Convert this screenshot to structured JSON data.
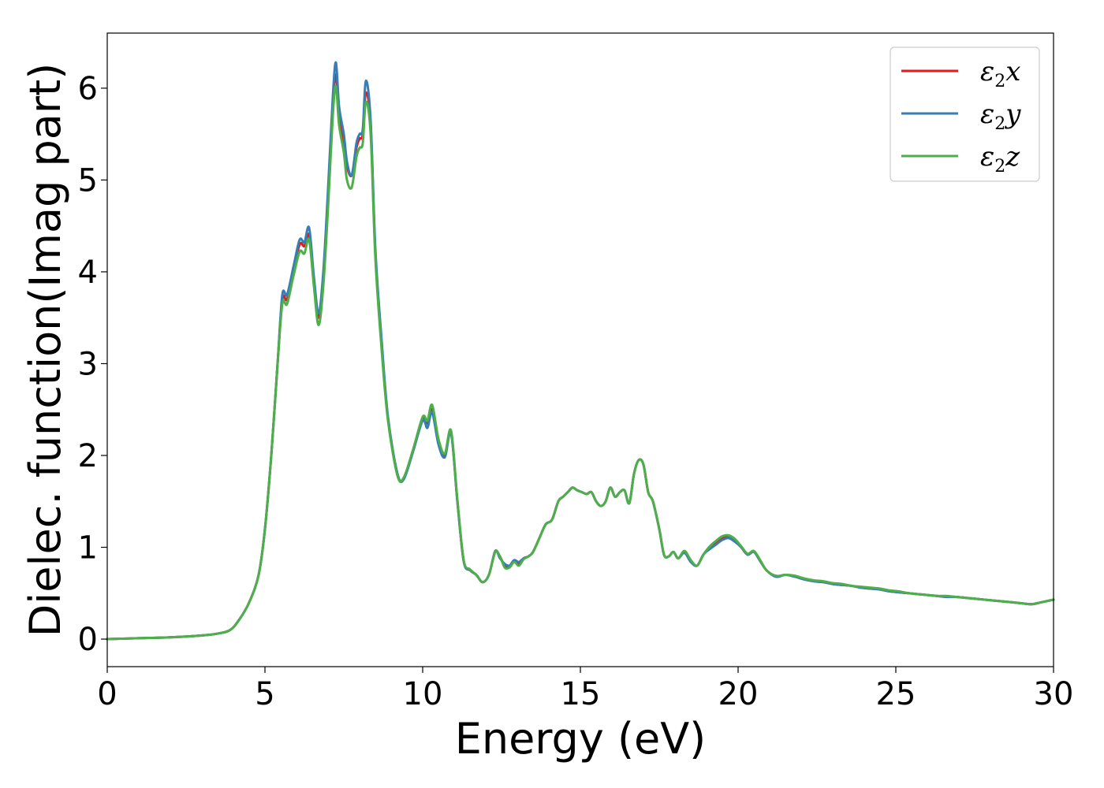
{
  "chart_data": {
    "type": "line",
    "xlabel": "Energy (eV)",
    "ylabel": "Dielec. function(Imag part)",
    "xlim": [
      0,
      30
    ],
    "ylim": [
      -0.3,
      6.6
    ],
    "xticks": [
      "0",
      "5",
      "10",
      "15",
      "20",
      "25",
      "30"
    ],
    "yticks": [
      "0",
      "1",
      "2",
      "3",
      "4",
      "5",
      "6"
    ],
    "grid": false,
    "legend_position": "top-right",
    "series": [
      {
        "name": "ε2x",
        "legend_base": "ε",
        "legend_sub": "2",
        "legend_var": "x",
        "color": "#e41a1c",
        "x": [
          0,
          1,
          2,
          3,
          3.5,
          3.9,
          4.2,
          4.5,
          4.8,
          5.0,
          5.2,
          5.4,
          5.55,
          5.7,
          5.9,
          6.1,
          6.25,
          6.4,
          6.55,
          6.7,
          6.85,
          7.0,
          7.15,
          7.25,
          7.35,
          7.5,
          7.6,
          7.75,
          7.9,
          8.0,
          8.1,
          8.2,
          8.35,
          8.5,
          8.7,
          8.9,
          9.2,
          9.4,
          9.7,
          10.0,
          10.15,
          10.3,
          10.5,
          10.7,
          10.9,
          11.1,
          11.3,
          11.5,
          11.7,
          11.9,
          12.1,
          12.3,
          12.45,
          12.6,
          12.75,
          12.9,
          13.05,
          13.2,
          13.35,
          13.5,
          13.7,
          13.9,
          14.1,
          14.3,
          14.45,
          14.6,
          14.75,
          14.9,
          15.05,
          15.2,
          15.35,
          15.5,
          15.65,
          15.8,
          15.95,
          16.1,
          16.25,
          16.4,
          16.55,
          16.7,
          16.85,
          17.0,
          17.15,
          17.3,
          17.5,
          17.65,
          17.8,
          17.95,
          18.1,
          18.3,
          18.5,
          18.7,
          18.9,
          19.1,
          19.3,
          19.5,
          19.7,
          19.9,
          20.1,
          20.3,
          20.5,
          20.7,
          20.9,
          21.2,
          21.5,
          21.8,
          22.1,
          22.4,
          22.7,
          23.0,
          23.3,
          23.6,
          23.9,
          24.2,
          24.5,
          24.8,
          25.1,
          25.4,
          25.7,
          26.0,
          26.3,
          26.6,
          26.9,
          27.2,
          27.5,
          27.8,
          28.1,
          28.4,
          28.7,
          29.0,
          29.3,
          29.6,
          30.0
        ],
        "y": [
          0.0,
          0.01,
          0.02,
          0.04,
          0.06,
          0.1,
          0.22,
          0.4,
          0.7,
          1.2,
          2.0,
          3.0,
          3.7,
          3.7,
          4.0,
          4.3,
          4.28,
          4.4,
          3.9,
          3.5,
          3.9,
          4.8,
          5.8,
          6.15,
          5.7,
          5.4,
          5.15,
          5.05,
          5.35,
          5.45,
          5.5,
          5.95,
          5.6,
          4.2,
          3.2,
          2.4,
          1.8,
          1.75,
          2.05,
          2.4,
          2.35,
          2.5,
          2.15,
          2.0,
          2.25,
          1.5,
          0.85,
          0.75,
          0.7,
          0.62,
          0.7,
          0.95,
          0.9,
          0.8,
          0.78,
          0.85,
          0.82,
          0.88,
          0.9,
          0.95,
          1.1,
          1.25,
          1.3,
          1.5,
          1.55,
          1.6,
          1.65,
          1.62,
          1.6,
          1.58,
          1.6,
          1.5,
          1.45,
          1.5,
          1.65,
          1.55,
          1.6,
          1.62,
          1.48,
          1.8,
          1.95,
          1.9,
          1.6,
          1.5,
          1.2,
          0.92,
          0.9,
          0.95,
          0.88,
          0.95,
          0.85,
          0.8,
          0.92,
          1.0,
          1.05,
          1.1,
          1.12,
          1.08,
          1.0,
          0.92,
          0.95,
          0.85,
          0.75,
          0.68,
          0.7,
          0.68,
          0.65,
          0.63,
          0.62,
          0.6,
          0.59,
          0.58,
          0.56,
          0.55,
          0.54,
          0.52,
          0.51,
          0.5,
          0.49,
          0.48,
          0.47,
          0.46,
          0.46,
          0.45,
          0.44,
          0.43,
          0.42,
          0.41,
          0.4,
          0.39,
          0.38,
          0.4,
          0.43
        ]
      },
      {
        "name": "ε2y",
        "legend_base": "ε",
        "legend_sub": "2",
        "legend_var": "y",
        "color": "#377eb8",
        "x": [
          0,
          1,
          2,
          3,
          3.5,
          3.9,
          4.2,
          4.5,
          4.8,
          5.0,
          5.2,
          5.4,
          5.55,
          5.7,
          5.9,
          6.1,
          6.25,
          6.4,
          6.55,
          6.7,
          6.85,
          7.0,
          7.15,
          7.25,
          7.35,
          7.5,
          7.6,
          7.75,
          7.9,
          8.0,
          8.1,
          8.2,
          8.35,
          8.5,
          8.7,
          8.9,
          9.2,
          9.4,
          9.7,
          10.0,
          10.15,
          10.3,
          10.5,
          10.7,
          10.9,
          11.1,
          11.3,
          11.5,
          11.7,
          11.9,
          12.1,
          12.3,
          12.45,
          12.6,
          12.75,
          12.9,
          13.05,
          13.2,
          13.35,
          13.5,
          13.7,
          13.9,
          14.1,
          14.3,
          14.45,
          14.6,
          14.75,
          14.9,
          15.05,
          15.2,
          15.35,
          15.5,
          15.65,
          15.8,
          15.95,
          16.1,
          16.25,
          16.4,
          16.55,
          16.7,
          16.85,
          17.0,
          17.15,
          17.3,
          17.5,
          17.65,
          17.8,
          17.95,
          18.1,
          18.3,
          18.5,
          18.7,
          18.9,
          19.1,
          19.3,
          19.5,
          19.7,
          19.9,
          20.1,
          20.3,
          20.5,
          20.7,
          20.9,
          21.2,
          21.5,
          21.8,
          22.1,
          22.4,
          22.7,
          23.0,
          23.3,
          23.6,
          23.9,
          24.2,
          24.5,
          24.8,
          25.1,
          25.4,
          25.7,
          26.0,
          26.3,
          26.6,
          26.9,
          27.2,
          27.5,
          27.8,
          28.1,
          28.4,
          28.7,
          29.0,
          29.3,
          29.6,
          30.0
        ],
        "y": [
          0.0,
          0.01,
          0.02,
          0.04,
          0.06,
          0.1,
          0.22,
          0.4,
          0.7,
          1.2,
          2.0,
          3.0,
          3.75,
          3.75,
          4.05,
          4.35,
          4.32,
          4.48,
          3.95,
          3.55,
          4.0,
          4.9,
          5.9,
          6.28,
          5.8,
          5.5,
          5.2,
          5.05,
          5.4,
          5.5,
          5.55,
          6.08,
          5.65,
          4.25,
          3.25,
          2.42,
          1.8,
          1.74,
          2.05,
          2.38,
          2.3,
          2.47,
          2.12,
          1.98,
          2.24,
          1.5,
          0.85,
          0.75,
          0.7,
          0.62,
          0.7,
          0.96,
          0.88,
          0.82,
          0.8,
          0.86,
          0.84,
          0.88,
          0.9,
          0.95,
          1.1,
          1.25,
          1.3,
          1.5,
          1.55,
          1.6,
          1.65,
          1.62,
          1.6,
          1.58,
          1.6,
          1.5,
          1.45,
          1.5,
          1.65,
          1.55,
          1.6,
          1.62,
          1.48,
          1.8,
          1.95,
          1.9,
          1.6,
          1.5,
          1.2,
          0.92,
          0.9,
          0.95,
          0.88,
          0.94,
          0.84,
          0.8,
          0.92,
          0.98,
          1.03,
          1.08,
          1.1,
          1.06,
          1.0,
          0.92,
          0.95,
          0.85,
          0.75,
          0.68,
          0.7,
          0.68,
          0.65,
          0.63,
          0.62,
          0.6,
          0.59,
          0.58,
          0.56,
          0.55,
          0.54,
          0.52,
          0.51,
          0.5,
          0.49,
          0.48,
          0.47,
          0.46,
          0.46,
          0.45,
          0.44,
          0.43,
          0.42,
          0.41,
          0.4,
          0.39,
          0.38,
          0.4,
          0.43
        ]
      },
      {
        "name": "ε2z",
        "legend_base": "ε",
        "legend_sub": "2",
        "legend_var": "z",
        "color": "#4daf4a",
        "x": [
          0,
          1,
          2,
          3,
          3.5,
          3.9,
          4.2,
          4.5,
          4.8,
          5.0,
          5.2,
          5.4,
          5.55,
          5.7,
          5.9,
          6.1,
          6.25,
          6.4,
          6.55,
          6.7,
          6.85,
          7.0,
          7.15,
          7.25,
          7.35,
          7.5,
          7.6,
          7.75,
          7.9,
          8.0,
          8.1,
          8.2,
          8.35,
          8.5,
          8.7,
          8.9,
          9.2,
          9.4,
          9.7,
          10.0,
          10.15,
          10.3,
          10.5,
          10.7,
          10.9,
          11.1,
          11.3,
          11.5,
          11.7,
          11.9,
          12.1,
          12.3,
          12.45,
          12.6,
          12.75,
          12.9,
          13.05,
          13.2,
          13.35,
          13.5,
          13.7,
          13.9,
          14.1,
          14.3,
          14.45,
          14.6,
          14.75,
          14.9,
          15.05,
          15.2,
          15.35,
          15.5,
          15.65,
          15.8,
          15.95,
          16.1,
          16.25,
          16.4,
          16.55,
          16.7,
          16.85,
          17.0,
          17.15,
          17.3,
          17.5,
          17.65,
          17.8,
          17.95,
          18.1,
          18.3,
          18.5,
          18.7,
          18.9,
          19.1,
          19.3,
          19.5,
          19.7,
          19.9,
          20.1,
          20.3,
          20.5,
          20.7,
          20.9,
          21.2,
          21.5,
          21.8,
          22.1,
          22.4,
          22.7,
          23.0,
          23.3,
          23.6,
          23.9,
          24.2,
          24.5,
          24.8,
          25.1,
          25.4,
          25.7,
          26.0,
          26.3,
          26.6,
          26.9,
          27.2,
          27.5,
          27.8,
          28.1,
          28.4,
          28.7,
          29.0,
          29.3,
          29.6,
          30.0
        ],
        "y": [
          0.0,
          0.01,
          0.02,
          0.04,
          0.06,
          0.1,
          0.22,
          0.4,
          0.7,
          1.2,
          2.0,
          3.0,
          3.65,
          3.65,
          3.95,
          4.22,
          4.2,
          4.35,
          3.85,
          3.42,
          3.85,
          4.7,
          5.7,
          6.02,
          5.6,
          5.3,
          5.0,
          4.92,
          5.25,
          5.35,
          5.4,
          5.85,
          5.5,
          4.15,
          3.15,
          2.38,
          1.78,
          1.76,
          2.07,
          2.42,
          2.38,
          2.55,
          2.18,
          2.02,
          2.27,
          1.52,
          0.86,
          0.76,
          0.7,
          0.62,
          0.7,
          0.95,
          0.9,
          0.78,
          0.78,
          0.84,
          0.8,
          0.87,
          0.9,
          0.95,
          1.1,
          1.25,
          1.3,
          1.5,
          1.55,
          1.6,
          1.65,
          1.62,
          1.6,
          1.58,
          1.6,
          1.5,
          1.45,
          1.5,
          1.65,
          1.55,
          1.6,
          1.62,
          1.48,
          1.8,
          1.95,
          1.9,
          1.6,
          1.5,
          1.2,
          0.92,
          0.9,
          0.95,
          0.88,
          0.96,
          0.86,
          0.8,
          0.92,
          1.01,
          1.07,
          1.12,
          1.13,
          1.09,
          1.01,
          0.93,
          0.96,
          0.86,
          0.75,
          0.69,
          0.7,
          0.69,
          0.66,
          0.64,
          0.63,
          0.61,
          0.6,
          0.58,
          0.57,
          0.56,
          0.55,
          0.53,
          0.52,
          0.5,
          0.49,
          0.48,
          0.47,
          0.47,
          0.46,
          0.45,
          0.44,
          0.43,
          0.42,
          0.41,
          0.4,
          0.39,
          0.38,
          0.4,
          0.43
        ]
      }
    ]
  }
}
